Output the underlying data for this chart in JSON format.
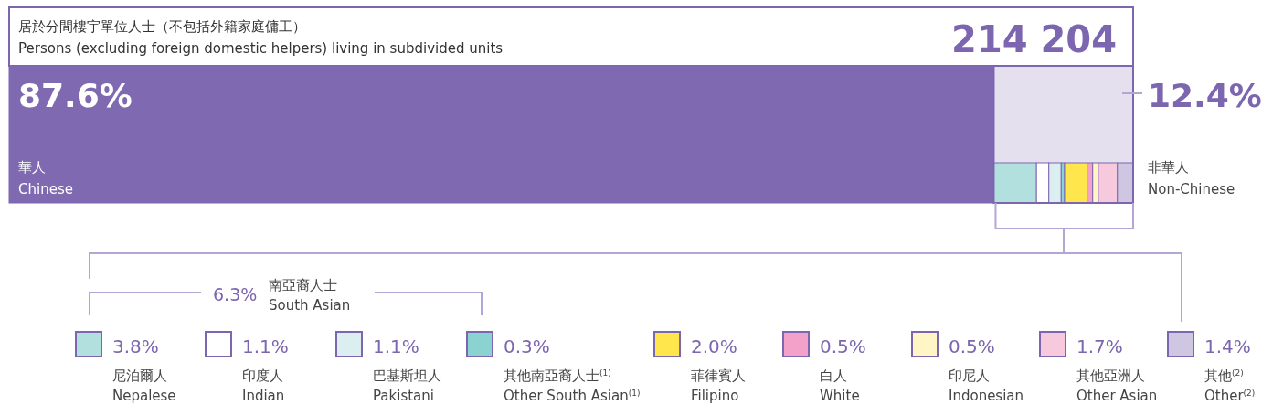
{
  "chart_data": {
    "type": "other",
    "title": "居於分間樓宇單位人士（不包括外籍家庭傭工）",
    "subtitle": "Persons (excluding foreign domestic helpers) living in subdivided units",
    "categories": [
      "華人\nChinese",
      "尼泊爾人\nNepalese",
      "印度人\nIndian",
      "巴基斯坦人\nPakistani",
      "其他南亞裔人士$^{(1)}$\nOther South Asian$^{(1)}$",
      "菲律賓人\nFilipino",
      "白人\nWhite",
      "印尼人\nIndonesian",
      "其他亞洲人\nOther Asian",
      "其他$^{(2)}$\nOther$^{(2)}$"
    ],
    "values": [
      87.6,
      3.8,
      1.1,
      1.1,
      0.3,
      2.0,
      0.5,
      0.5,
      1.7,
      1.4
    ],
    "value_labels": [
      "87.6%",
      "3.8%",
      "1.1%",
      "1.1%",
      "0.3%",
      "2.0%",
      "0.5%",
      "0.5%",
      "1.7%",
      "1.4%"
    ],
    "colors": [
      "#7f6ab2",
      "#b2e0df",
      "#ffffff",
      "#dceff0",
      "#8ad3d0",
      "#ffe64d",
      "#f3a1c8",
      "#fff5c5",
      "#f7c9dc",
      "#cfc6e2"
    ],
    "annotations": [
      "214 204",
      "12.4%",
      "非華人\nNon-Chinese",
      "6.3%",
      "南亞裔人士\nSouth Asian"
    ]
  }
}
